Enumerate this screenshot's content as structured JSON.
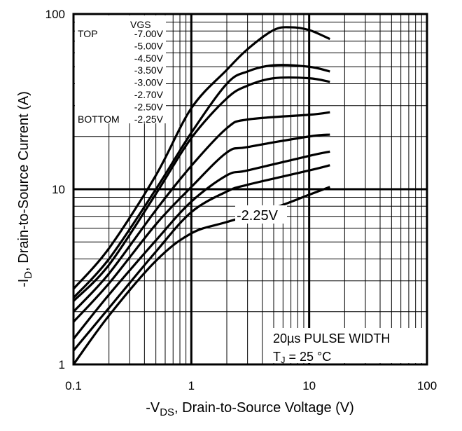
{
  "chart_data": {
    "type": "line",
    "title": "",
    "xlabel": {
      "prefix": "-V",
      "sub": "DS",
      "rest": ", Drain-to-Source Voltage (V)"
    },
    "ylabel": {
      "prefix": "-I",
      "sub": "D",
      "rest": ",  Drain-to-Source Current (A)"
    },
    "x_scale": "log",
    "y_scale": "log",
    "xlim": [
      0.1,
      100
    ],
    "ylim": [
      1,
      100
    ],
    "x_ticks": [
      "0.1",
      "1",
      "10",
      "100"
    ],
    "y_ticks": [
      "1",
      "10",
      "100"
    ],
    "grid": true,
    "legend": {
      "placement": "top-left",
      "header": "VGS",
      "top_label": "TOP",
      "bottom_label": "BOTTOM",
      "entries": [
        "-7.00V",
        "-5.00V",
        "-4.50V",
        "-3.50V",
        "-3.00V",
        "-2.70V",
        "-2.50V",
        "-2.25V"
      ]
    },
    "annotations": {
      "curve_label": "-2.25V",
      "pulse": "20µs PULSE WIDTH",
      "tj_prefix": "T",
      "tj_sub": "J",
      "tj_rest": " = 25 °C"
    },
    "series": [
      {
        "name": "-7.00V",
        "x": [
          0.1,
          0.2,
          0.5,
          1,
          2,
          3,
          5,
          7,
          10,
          15
        ],
        "y": [
          2.7,
          4.6,
          12,
          29,
          48,
          63,
          81,
          84,
          81,
          72
        ]
      },
      {
        "name": "-5.00V",
        "x": [
          0.1,
          0.2,
          0.5,
          1,
          2,
          3,
          5,
          10,
          15
        ],
        "y": [
          2.4,
          4.0,
          10,
          21,
          40,
          47,
          51,
          50,
          47
        ]
      },
      {
        "name": "-4.50V",
        "x": [
          0.1,
          0.2,
          0.5,
          1,
          2,
          3,
          5,
          10,
          15
        ],
        "y": [
          2.3,
          3.7,
          9.4,
          19.6,
          33,
          39,
          43,
          43,
          41
        ]
      },
      {
        "name": "-3.50V",
        "x": [
          0.1,
          0.2,
          0.5,
          1,
          2,
          3,
          10,
          15
        ],
        "y": [
          2.0,
          3.3,
          7.6,
          13.6,
          22.3,
          25,
          26.6,
          27.5
        ]
      },
      {
        "name": "-3.00V",
        "x": [
          0.1,
          0.2,
          0.5,
          1,
          2,
          3,
          10,
          15
        ],
        "y": [
          1.75,
          2.9,
          6.3,
          10.3,
          16.2,
          17.4,
          20,
          20.5
        ]
      },
      {
        "name": "-2.70V",
        "x": [
          0.1,
          0.2,
          0.5,
          1,
          2,
          3,
          10,
          15
        ],
        "y": [
          1.4,
          2.5,
          5.1,
          8.5,
          12,
          12.8,
          15.5,
          16.4
        ]
      },
      {
        "name": "-2.50V",
        "x": [
          0.1,
          0.2,
          0.5,
          1,
          2,
          3,
          10,
          15
        ],
        "y": [
          1.2,
          2.1,
          4.4,
          7.4,
          9.7,
          10.6,
          12.8,
          13.7
        ]
      },
      {
        "name": "-2.25V",
        "x": [
          0.1,
          0.2,
          0.5,
          1,
          2,
          5,
          10,
          15
        ],
        "y": [
          1.0,
          1.9,
          3.9,
          5.6,
          6.5,
          7.8,
          9.3,
          10.3
        ]
      }
    ]
  }
}
